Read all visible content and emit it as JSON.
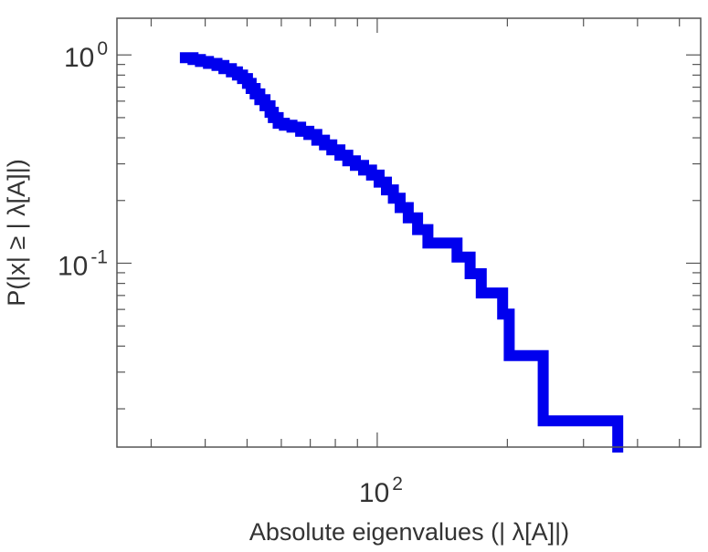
{
  "chart_data": {
    "type": "line",
    "title": "",
    "xlabel": "Absolute eigenvalues (|     λ[A]|)",
    "ylabel": "P(|x| ≥ | λ[A]|)",
    "xscale": "log",
    "yscale": "log",
    "xlim": [
      25,
      560
    ],
    "ylim": [
      0.0131,
      1.5
    ],
    "grid": false,
    "legend": "none",
    "x_ticks": [
      {
        "value": 100,
        "base": "10",
        "exp": "2"
      }
    ],
    "y_ticks": [
      {
        "value": 1,
        "base": "10",
        "exp": "0"
      },
      {
        "value": 0.1,
        "base": "10",
        "exp": "-1"
      }
    ],
    "series": [
      {
        "name": "",
        "color": "#0000ee",
        "step": true,
        "x": [
          36.0,
          37.5,
          39.0,
          40.7,
          42.6,
          44.2,
          46.0,
          47.5,
          48.8,
          50.1,
          51.1,
          52.2,
          53.5,
          55.0,
          56.5,
          57.5,
          59.0,
          61.0,
          63.5,
          66.5,
          69.5,
          72.5,
          75.5,
          78.5,
          82.0,
          85.5,
          89.0,
          93.0,
          97.0,
          101.0,
          105.0,
          109.0,
          113.0,
          118.0,
          124.0,
          131.0,
          153.0,
          164.0,
          174.0,
          195.0,
          202.0,
          242.0,
          260.0,
          360.0
        ],
        "y": [
          0.97,
          0.95,
          0.93,
          0.91,
          0.89,
          0.86,
          0.83,
          0.8,
          0.77,
          0.73,
          0.69,
          0.65,
          0.61,
          0.57,
          0.53,
          0.5,
          0.47,
          0.46,
          0.45,
          0.43,
          0.415,
          0.39,
          0.37,
          0.35,
          0.33,
          0.31,
          0.295,
          0.28,
          0.265,
          0.245,
          0.225,
          0.205,
          0.185,
          0.165,
          0.145,
          0.125,
          0.107,
          0.089,
          0.072,
          0.057,
          0.036,
          0.0175,
          0.0175,
          0.0131
        ]
      }
    ]
  }
}
